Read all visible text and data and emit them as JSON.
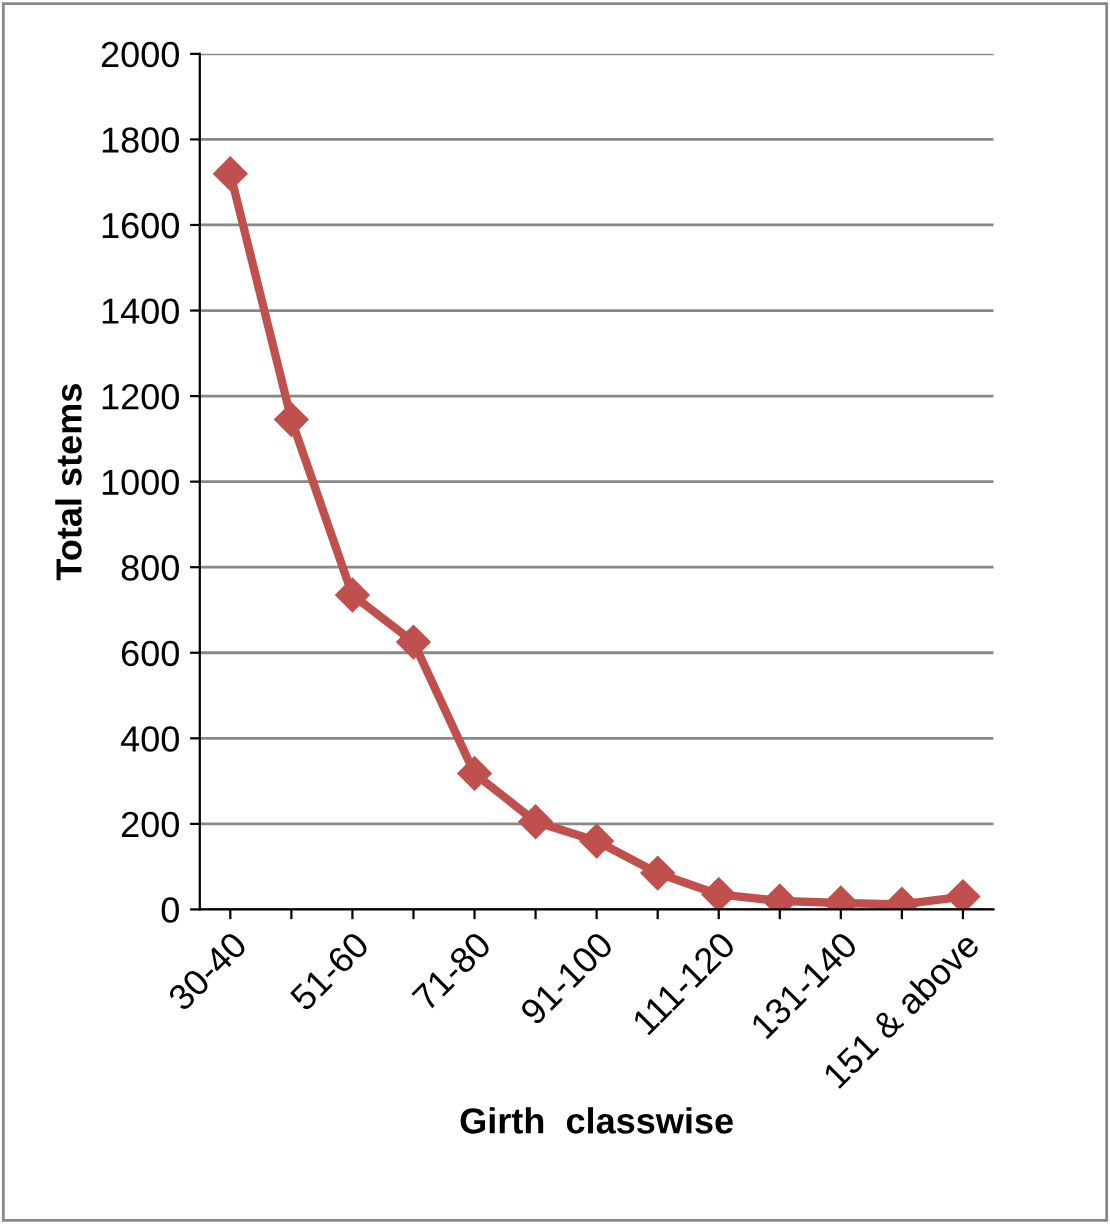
{
  "chart_data": {
    "type": "line",
    "xlabel": "Girth  classwise",
    "ylabel": "Total stems",
    "categories": [
      "30-40",
      null,
      "51-60",
      null,
      "71-80",
      null,
      "91-100",
      null,
      "111-120",
      null,
      "131-140",
      null,
      "151 & above"
    ],
    "series": [
      {
        "color": "#c0504d",
        "values": [
          1720,
          1145,
          735,
          625,
          318,
          205,
          160,
          85,
          35,
          20,
          15,
          12,
          30
        ]
      }
    ],
    "ylim": [
      0,
      2000
    ],
    "yticks": [
      0,
      200,
      400,
      600,
      800,
      1000,
      1200,
      1400,
      1600,
      1800,
      2000
    ],
    "grid": "y",
    "legend": false,
    "marker": "diamond",
    "line_style": "solid"
  }
}
